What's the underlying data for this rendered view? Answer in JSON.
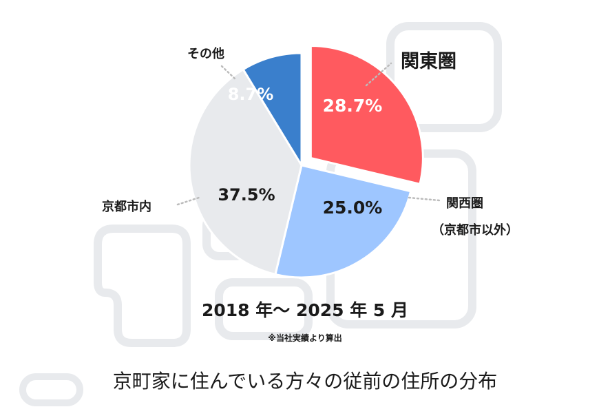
{
  "chart_data": {
    "type": "pie",
    "title": "京町家に住んでいる方々の従前の住所の分布",
    "period": "2018 年〜 2025 年 5 月",
    "note": "※当社実績より算出",
    "slices": [
      {
        "name": "関東圏",
        "value": 28.7,
        "label": "28.7%",
        "color": "#ff5a5f",
        "exploded": true
      },
      {
        "name": "関西圏",
        "name2": "（京都市以外）",
        "value": 25.0,
        "label": "25.0%",
        "color": "#9ec6ff",
        "exploded": false
      },
      {
        "name": "京都市内",
        "value": 37.5,
        "label": "37.5%",
        "color": "#e8eaed",
        "exploded": false
      },
      {
        "name": "その他",
        "value": 8.7,
        "label": "8.7%",
        "color": "#3a7fcc",
        "exploded": false
      }
    ],
    "colors": {
      "background_shapes": "#e8eaed",
      "leader": "#bbbbbb",
      "text": "#1a1a1a",
      "label_light": "#ffffff"
    }
  }
}
